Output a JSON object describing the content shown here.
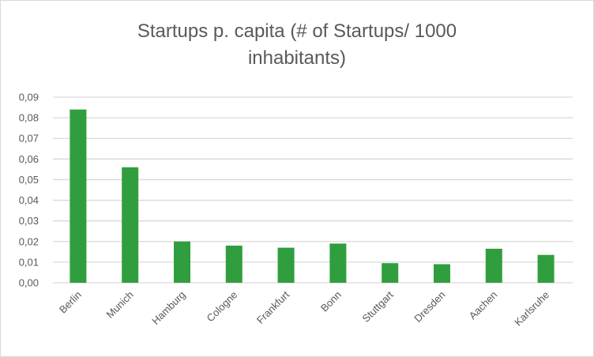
{
  "chart_data": {
    "type": "bar",
    "title_line1": "Startups p. capita (# of Startups/ 1000",
    "title_line2": "inhabitants)",
    "categories": [
      "Berlin",
      "Munich",
      "Hamburg",
      "Cologne",
      "Frankfurt",
      "Bonn",
      "Stuttgart",
      "Dresden",
      "Aachen",
      "Karlsruhe"
    ],
    "values": [
      0.084,
      0.056,
      0.02,
      0.018,
      0.017,
      0.019,
      0.0095,
      0.009,
      0.0165,
      0.0135
    ],
    "yticks": [
      "0,00",
      "0,01",
      "0,02",
      "0,03",
      "0,04",
      "0,05",
      "0,06",
      "0,07",
      "0,08",
      "0,09"
    ],
    "ylim": [
      0,
      0.09
    ],
    "grid": true,
    "legend": "none",
    "bar_color": "#309e3e",
    "grid_color": "#d9d9d9"
  }
}
